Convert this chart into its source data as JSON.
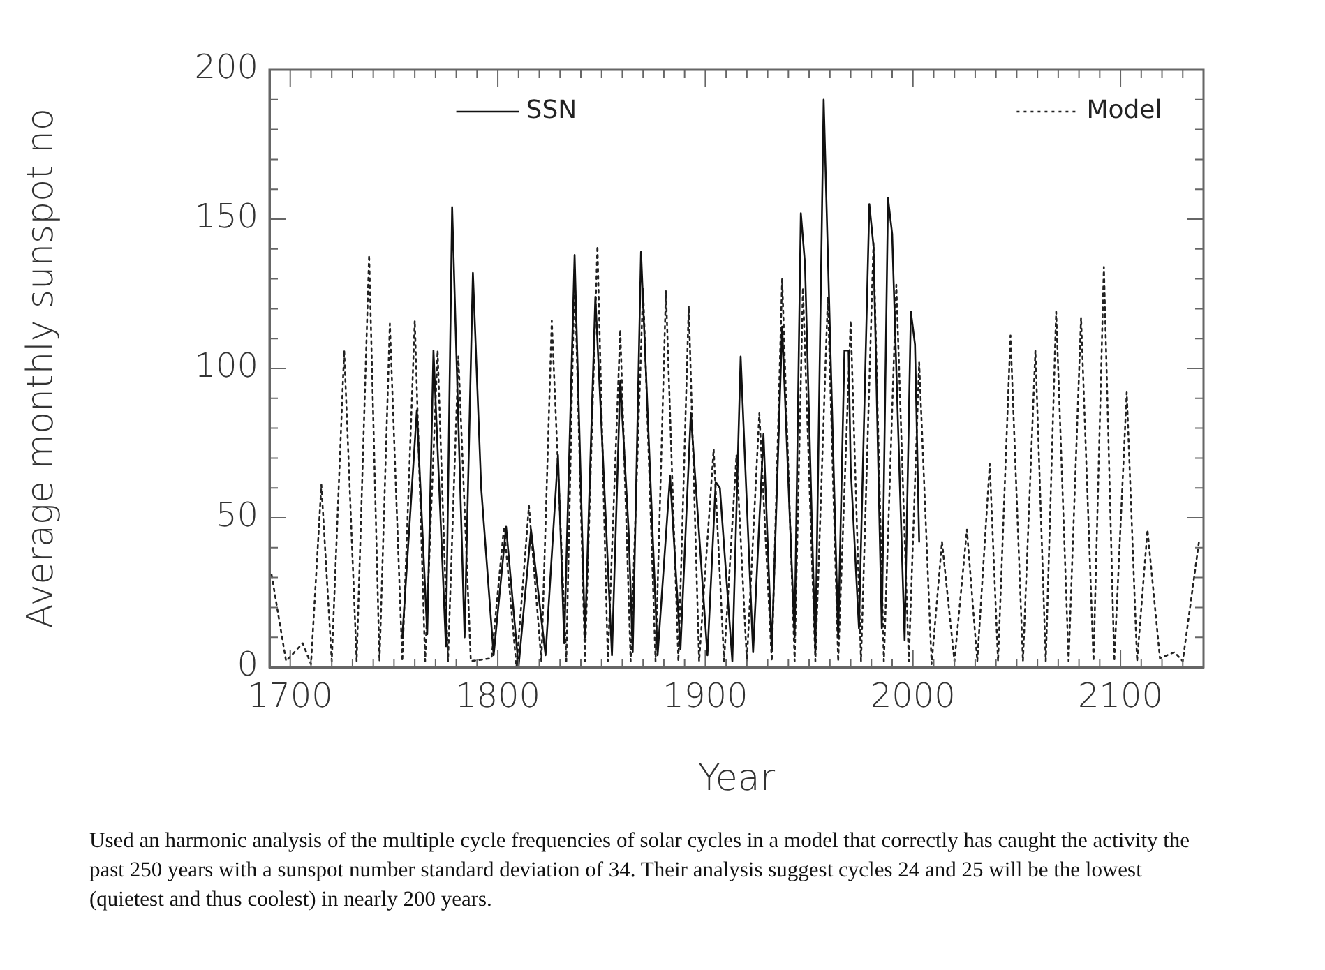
{
  "chart_data": {
    "type": "line",
    "xlabel": "Year",
    "ylabel": "Average monthly sunspot no",
    "xlim": [
      1690,
      2140
    ],
    "ylim": [
      0,
      200
    ],
    "xticks": [
      {
        "value": 1690,
        "label": null
      },
      1700,
      {
        "value": 1710,
        "label": null
      },
      {
        "value": 1720,
        "label": null
      },
      {
        "value": 1730,
        "label": null
      },
      {
        "value": 1740,
        "label": null
      },
      {
        "value": 1750,
        "label": null
      },
      {
        "value": 1760,
        "label": null
      },
      {
        "value": 1770,
        "label": null
      },
      {
        "value": 1780,
        "label": null
      },
      {
        "value": 1790,
        "label": null
      },
      1800,
      {
        "value": 1810,
        "label": null
      },
      {
        "value": 1820,
        "label": null
      },
      {
        "value": 1830,
        "label": null
      },
      {
        "value": 1840,
        "label": null
      },
      {
        "value": 1850,
        "label": null
      },
      {
        "value": 1860,
        "label": null
      },
      {
        "value": 1870,
        "label": null
      },
      {
        "value": 1880,
        "label": null
      },
      {
        "value": 1890,
        "label": null
      },
      1900,
      {
        "value": 1910,
        "label": null
      },
      {
        "value": 1920,
        "label": null
      },
      {
        "value": 1930,
        "label": null
      },
      {
        "value": 1940,
        "label": null
      },
      {
        "value": 1950,
        "label": null
      },
      {
        "value": 1960,
        "label": null
      },
      {
        "value": 1970,
        "label": null
      },
      {
        "value": 1980,
        "label": null
      },
      {
        "value": 1990,
        "label": null
      },
      2000,
      {
        "value": 2010,
        "label": null
      },
      {
        "value": 2020,
        "label": null
      },
      {
        "value": 2030,
        "label": null
      },
      {
        "value": 2040,
        "label": null
      },
      {
        "value": 2050,
        "label": null
      },
      {
        "value": 2060,
        "label": null
      },
      {
        "value": 2070,
        "label": null
      },
      {
        "value": 2080,
        "label": null
      },
      {
        "value": 2090,
        "label": null
      },
      2100,
      {
        "value": 2110,
        "label": null
      },
      {
        "value": 2120,
        "label": null
      },
      {
        "value": 2130,
        "label": null
      }
    ],
    "yticks": [
      0,
      {
        "value": 10,
        "label": null
      },
      {
        "value": 20,
        "label": null
      },
      {
        "value": 30,
        "label": null
      },
      {
        "value": 40,
        "label": null
      },
      50,
      {
        "value": 60,
        "label": null
      },
      {
        "value": 70,
        "label": null
      },
      {
        "value": 80,
        "label": null
      },
      {
        "value": 90,
        "label": null
      },
      100,
      {
        "value": 110,
        "label": null
      },
      {
        "value": 120,
        "label": null
      },
      {
        "value": 130,
        "label": null
      },
      {
        "value": 140,
        "label": null
      },
      150,
      {
        "value": 160,
        "label": null
      },
      {
        "value": 170,
        "label": null
      },
      {
        "value": 180,
        "label": null
      },
      {
        "value": 190,
        "label": null
      },
      200
    ],
    "grid": false,
    "legend": "top",
    "marker": "none",
    "series": [
      {
        "name": "SSN",
        "color": "#111111",
        "line_style": "solid",
        "x": [
          1754,
          1761,
          1766,
          1769,
          1775,
          1778,
          1784,
          1788,
          1792,
          1798,
          1804,
          1810,
          1816,
          1823,
          1829,
          1832,
          1837,
          1842,
          1847,
          1851,
          1855,
          1859,
          1863,
          1865,
          1869,
          1877,
          1883,
          1888,
          1893,
          1901,
          1905,
          1907,
          1913,
          1917,
          1923,
          1928,
          1932,
          1937,
          1943,
          1946,
          1948,
          1953,
          1957,
          1964,
          1967,
          1969,
          1970,
          1974,
          1979,
          1981,
          1985,
          1988,
          1990,
          1996,
          1999,
          2001,
          2003
        ],
        "values": [
          10,
          86,
          11,
          106,
          7,
          154,
          10,
          132,
          60,
          4,
          47,
          0,
          46,
          4,
          71,
          8,
          138,
          10,
          124,
          65,
          4,
          96,
          46,
          5,
          139,
          4,
          64,
          6,
          85,
          4,
          62,
          60,
          2,
          104,
          5,
          78,
          6,
          114,
          10,
          152,
          135,
          5,
          190,
          10,
          106,
          106,
          67,
          13,
          155,
          141,
          13,
          157,
          145,
          9,
          119,
          108,
          42
        ]
      },
      {
        "name": "Model",
        "color": "#222222",
        "line_style": "dotted",
        "x": [
          1691,
          1698,
          1706,
          1710,
          1715,
          1720,
          1726,
          1732,
          1738,
          1743,
          1748,
          1754,
          1760,
          1765,
          1771,
          1776,
          1781,
          1787,
          1797,
          1803,
          1809,
          1815,
          1821,
          1826,
          1833,
          1837,
          1842,
          1848,
          1853,
          1859,
          1864,
          1870,
          1876,
          1881,
          1887,
          1892,
          1897,
          1904,
          1909,
          1915,
          1920,
          1926,
          1932,
          1937,
          1943,
          1947,
          1953,
          1959,
          1964,
          1970,
          1975,
          1981,
          1986,
          1992,
          1998,
          2003,
          2009,
          2014,
          2020,
          2026,
          2031,
          2037,
          2041,
          2047,
          2053,
          2059,
          2064,
          2069,
          2075,
          2081,
          2087,
          2092,
          2097,
          2103,
          2108,
          2113,
          2119,
          2126,
          2130,
          2138
        ],
        "values": [
          31,
          2,
          8,
          1,
          61,
          2,
          106,
          2,
          138,
          2,
          115,
          2,
          116,
          2,
          106,
          2,
          104,
          2,
          3,
          47,
          0,
          54,
          2,
          116,
          2,
          133,
          2,
          141,
          2,
          113,
          2,
          127,
          2,
          126,
          2,
          121,
          2,
          73,
          2,
          71,
          2,
          85,
          2,
          130,
          2,
          127,
          2,
          124,
          2,
          116,
          2,
          142,
          2,
          128,
          2,
          102,
          1,
          42,
          2,
          46,
          2,
          68,
          2,
          111,
          2,
          106,
          2,
          119,
          2,
          117,
          2,
          134,
          2,
          92,
          2,
          46,
          3,
          5,
          2,
          43
        ]
      }
    ],
    "annotations": [
      "Used an harmonic analysis of the multiple cycle frequencies of solar cycles in a model that correctly has caught the activity the past 250 years with a sunspot number standard deviation of 34. Their analysis suggest cycles 24 and 25 will be the lowest (quietest and thus coolest) in nearly 200 years."
    ]
  }
}
